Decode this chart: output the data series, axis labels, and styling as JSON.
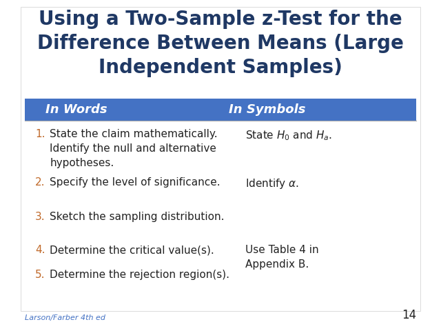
{
  "title": "Using a Two-Sample z-Test for the\nDifference Between Means (Large\nIndependent Samples)",
  "title_color": "#1F3864",
  "title_fontsize": 20,
  "header_bg_color": "#4472C4",
  "header_text_color": "#FFFFFF",
  "header_col1": "In Words",
  "header_col2": "In Symbols",
  "bg_color": "#FFFFFF",
  "number_color": "#C0692A",
  "text_color": "#222222",
  "rows": [
    {
      "number": "1.",
      "words": "State the claim mathematically.\nIdentify the null and alternative\nhypotheses.",
      "symbols": "State $H_0$ and $H_a$."
    },
    {
      "number": "2.",
      "words": "Specify the level of significance.",
      "symbols": "Identify $\\alpha$."
    },
    {
      "number": "3.",
      "words": "Sketch the sampling distribution.",
      "symbols": ""
    },
    {
      "number": "4.",
      "words": "Determine the critical value(s).",
      "symbols": "Use Table 4 in\nAppendix B."
    },
    {
      "number": "5.",
      "words": "Determine the rejection region(s).",
      "symbols": ""
    }
  ],
  "footer_text": "Larson/Farber 4th ed",
  "footer_color": "#4472C4",
  "page_number": "14",
  "divider_color": "#AAAAAA"
}
